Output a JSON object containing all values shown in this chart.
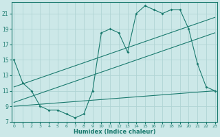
{
  "line1_x": [
    0,
    1,
    2,
    3,
    4,
    5,
    6,
    7,
    8,
    9,
    10,
    11,
    12,
    13,
    14,
    15,
    16,
    17,
    18,
    19,
    20,
    21,
    22,
    23
  ],
  "line1_y": [
    15.0,
    12.0,
    11.0,
    9.0,
    8.5,
    8.5,
    8.0,
    7.5,
    8.0,
    11.0,
    18.5,
    19.0,
    18.5,
    16.0,
    21.0,
    22.0,
    21.5,
    21.0,
    21.5,
    21.5,
    19.0,
    14.5,
    11.5,
    11.0
  ],
  "line2_x": [
    0,
    23
  ],
  "line2_y": [
    11.5,
    20.5
  ],
  "line3_x": [
    0,
    23
  ],
  "line3_y": [
    9.5,
    18.5
  ],
  "line4_x": [
    0,
    23
  ],
  "line4_y": [
    9.0,
    11.0
  ],
  "line_color": "#1a7a6e",
  "bg_color": "#cce8e8",
  "grid_color": "#b0d4d4",
  "xlabel": "Humidex (Indice chaleur)",
  "yticks": [
    7,
    9,
    11,
    13,
    15,
    17,
    19,
    21
  ],
  "xticks": [
    0,
    1,
    2,
    3,
    4,
    5,
    6,
    7,
    8,
    9,
    10,
    11,
    12,
    13,
    14,
    15,
    16,
    17,
    18,
    19,
    20,
    21,
    22,
    23
  ],
  "xlim": [
    -0.3,
    23.3
  ],
  "ylim": [
    7,
    22.5
  ]
}
